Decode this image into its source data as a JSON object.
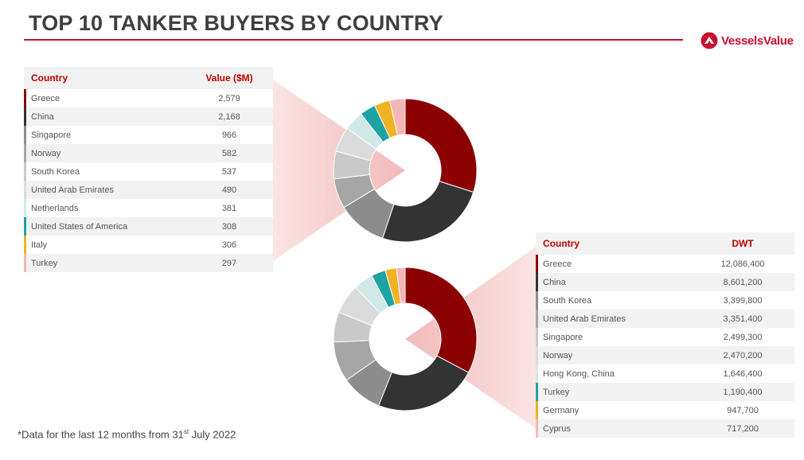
{
  "page": {
    "title": "TOP 10 TANKER BUYERS BY COUNTRY",
    "logo_text": "VesselsValue",
    "footnote_pre": "*Data for the last 12 months from 31",
    "footnote_sup": "st",
    "footnote_post": " July 2022"
  },
  "colors": {
    "accent": "#c8102e",
    "slices": [
      "#8b0000",
      "#333333",
      "#8c8c8c",
      "#a6a6a6",
      "#c9c9c9",
      "#dbdbdb",
      "#d0e8e8",
      "#1fa2a2",
      "#f0b323",
      "#f4b6b6",
      "#e05a5a"
    ]
  },
  "chart_data": [
    {
      "type": "pie",
      "header": [
        "Country",
        "Value ($M)"
      ],
      "categories": [
        "Greece",
        "China",
        "Singapore",
        "Norway",
        "South Korea",
        "United Arab Emirates",
        "Netherlands",
        "United States of America",
        "Italy",
        "Turkey"
      ],
      "display_values": [
        "2,579",
        "2,168",
        "966",
        "582",
        "537",
        "490",
        "381",
        "308",
        "306",
        "297"
      ],
      "values": [
        2579,
        2168,
        966,
        582,
        537,
        490,
        381,
        308,
        306,
        297
      ],
      "colors": [
        "#8b0000",
        "#333333",
        "#8c8c8c",
        "#a6a6a6",
        "#c9c9c9",
        "#dbdbdb",
        "#d0e8e8",
        "#1fa2a2",
        "#f0b323",
        "#f4b6b6",
        "#e05a5a"
      ]
    },
    {
      "type": "pie",
      "header": [
        "Country",
        "DWT"
      ],
      "categories": [
        "Greece",
        "China",
        "South Korea",
        "United Arab Emirates",
        "Singapore",
        "Norway",
        "Hong Kong, China",
        "Turkey",
        "Germany",
        "Cyprus"
      ],
      "display_values": [
        "12,086,400",
        "8,601,200",
        "3,399,800",
        "3,351,400",
        "2,499,300",
        "2,470,200",
        "1,646,400",
        "1,190,400",
        "947,700",
        "717,200"
      ],
      "values": [
        12086400,
        8601200,
        3399800,
        3351400,
        2499300,
        2470200,
        1646400,
        1190400,
        947700,
        717200
      ],
      "colors": [
        "#8b0000",
        "#333333",
        "#8c8c8c",
        "#a6a6a6",
        "#c9c9c9",
        "#dbdbdb",
        "#d0e8e8",
        "#1fa2a2",
        "#f0b323",
        "#f4b6b6",
        "#e05a5a"
      ]
    }
  ]
}
